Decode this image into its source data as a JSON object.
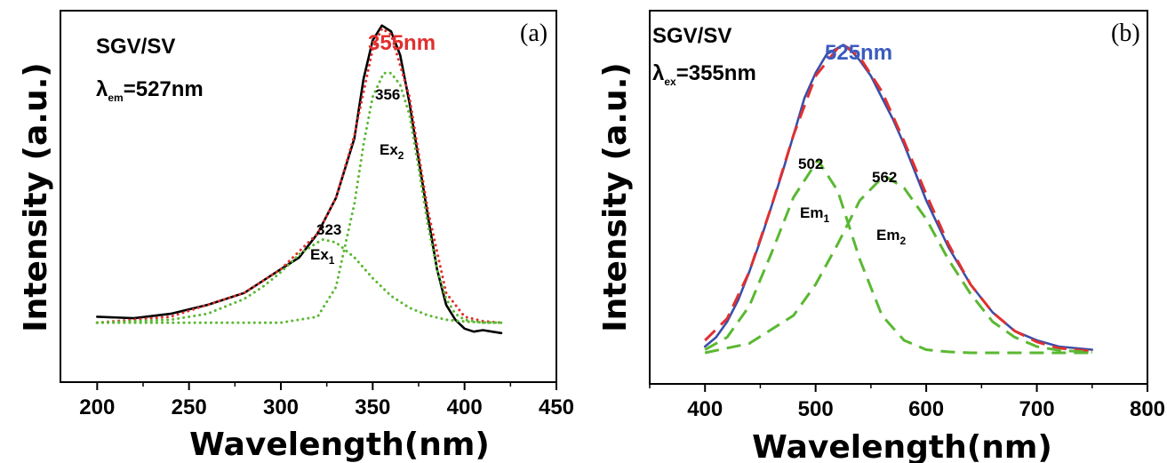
{
  "chart_data": [
    {
      "panel": "(a)",
      "type": "line",
      "title": "",
      "xlabel": "Wavelength(nm)",
      "ylabel": "Intensity (a.u.)",
      "xlim": [
        180,
        450
      ],
      "ylim": [
        -0.2,
        1.05
      ],
      "xticks": [
        "200",
        "250",
        "300",
        "350",
        "400",
        "450"
      ],
      "sample_label": "SGV/SV",
      "param_label": {
        "symbol": "λ",
        "sub": "em",
        "value": "=527nm"
      },
      "peak_label": "355nm",
      "annotations": [
        {
          "text": "356",
          "x": 356,
          "y": 0.84
        },
        {
          "text": "Ex",
          "sub": "2",
          "x": 358,
          "y": 0.65
        },
        {
          "text": "323",
          "x": 325,
          "y": 0.36
        },
        {
          "text": "Ex",
          "sub": "1",
          "x": 320,
          "y": 0.24
        }
      ],
      "series": [
        {
          "style": "solid",
          "color": "#000000",
          "x": [
            200,
            220,
            240,
            260,
            280,
            290,
            300,
            310,
            320,
            330,
            340,
            345,
            350,
            355,
            360,
            365,
            370,
            375,
            380,
            385,
            390,
            395,
            400,
            405,
            410,
            415,
            420
          ],
          "y": [
            0.02,
            0.015,
            0.03,
            0.06,
            0.1,
            0.14,
            0.18,
            0.22,
            0.3,
            0.42,
            0.62,
            0.82,
            0.95,
            1.0,
            0.98,
            0.9,
            0.74,
            0.55,
            0.36,
            0.18,
            0.06,
            0.01,
            -0.02,
            -0.03,
            -0.025,
            -0.03,
            -0.035
          ]
        },
        {
          "style": "dotted",
          "color": "#e03030",
          "x": [
            200,
            240,
            280,
            300,
            320,
            330,
            340,
            350,
            355,
            360,
            370,
            380,
            390,
            400,
            410,
            420
          ],
          "y": [
            0.0,
            0.02,
            0.1,
            0.18,
            0.3,
            0.42,
            0.63,
            0.92,
            0.99,
            0.97,
            0.76,
            0.38,
            0.1,
            0.02,
            0.005,
            0.0
          ]
        },
        {
          "style": "dotted",
          "color": "#5ab832",
          "x": [
            200,
            240,
            260,
            280,
            290,
            300,
            310,
            320,
            323,
            330,
            340,
            350,
            360,
            370,
            380,
            390,
            400,
            410,
            420
          ],
          "y": [
            0.0,
            0.01,
            0.03,
            0.08,
            0.12,
            0.17,
            0.23,
            0.27,
            0.28,
            0.27,
            0.22,
            0.15,
            0.09,
            0.05,
            0.025,
            0.01,
            0.004,
            0.001,
            0.0
          ]
        },
        {
          "style": "dotted",
          "color": "#5ab832",
          "x": [
            200,
            300,
            320,
            330,
            340,
            345,
            350,
            356,
            360,
            365,
            370,
            375,
            380,
            385,
            390,
            395,
            400,
            410,
            420
          ],
          "y": [
            0.0,
            0.0,
            0.02,
            0.12,
            0.4,
            0.6,
            0.76,
            0.84,
            0.84,
            0.8,
            0.7,
            0.52,
            0.33,
            0.18,
            0.08,
            0.03,
            0.01,
            0.0,
            0.0
          ]
        }
      ]
    },
    {
      "panel": "(b)",
      "type": "line",
      "title": "",
      "xlabel": "Wavelength(nm)",
      "ylabel": "Intensity (a.u.)",
      "xlim": [
        350,
        800
      ],
      "ylim": [
        -0.1,
        1.1
      ],
      "xticks": [
        "400",
        "500",
        "600",
        "700",
        "800"
      ],
      "sample_label": "SGV/SV",
      "param_label": {
        "symbol": "λ",
        "sub": "ex",
        "value": "=355nm"
      },
      "peak_label": "525nm",
      "annotations": [
        {
          "text": "502",
          "x": 502,
          "y": 0.72
        },
        {
          "text": "Em",
          "sub": "1",
          "x": 505,
          "y": 0.54
        },
        {
          "text": "562",
          "x": 562,
          "y": 0.66
        },
        {
          "text": "Em",
          "sub": "2",
          "x": 572,
          "y": 0.49
        }
      ],
      "series": [
        {
          "style": "solid",
          "color": "#3b4ea8",
          "x": [
            400,
            410,
            420,
            430,
            440,
            450,
            460,
            470,
            480,
            490,
            500,
            510,
            520,
            525,
            530,
            540,
            550,
            560,
            570,
            580,
            590,
            600,
            620,
            640,
            660,
            680,
            700,
            720,
            750
          ],
          "y": [
            0.02,
            0.05,
            0.1,
            0.17,
            0.26,
            0.36,
            0.47,
            0.58,
            0.7,
            0.82,
            0.9,
            0.96,
            0.98,
            0.99,
            0.98,
            0.94,
            0.89,
            0.82,
            0.75,
            0.67,
            0.58,
            0.49,
            0.34,
            0.22,
            0.13,
            0.07,
            0.04,
            0.02,
            0.01
          ]
        },
        {
          "style": "dashed",
          "color": "#e03030",
          "x": [
            400,
            420,
            440,
            460,
            480,
            500,
            520,
            525,
            540,
            560,
            580,
            600,
            620,
            640,
            660,
            680,
            700,
            720,
            750
          ],
          "y": [
            0.04,
            0.11,
            0.26,
            0.47,
            0.7,
            0.89,
            0.98,
            0.99,
            0.95,
            0.84,
            0.68,
            0.51,
            0.35,
            0.22,
            0.13,
            0.07,
            0.035,
            0.015,
            0.005
          ]
        },
        {
          "style": "dashed",
          "color": "#5ab832",
          "x": [
            400,
            420,
            440,
            460,
            480,
            502,
            520,
            540,
            560,
            580,
            600,
            620,
            640,
            660,
            700,
            750
          ],
          "y": [
            0.01,
            0.05,
            0.15,
            0.32,
            0.5,
            0.62,
            0.52,
            0.3,
            0.12,
            0.04,
            0.01,
            0.003,
            0.0,
            0.0,
            0.0,
            0.0
          ]
        },
        {
          "style": "dashed",
          "color": "#5ab832",
          "x": [
            400,
            440,
            480,
            500,
            520,
            540,
            562,
            580,
            600,
            620,
            640,
            660,
            680,
            700,
            720,
            750
          ],
          "y": [
            0.0,
            0.03,
            0.12,
            0.22,
            0.35,
            0.49,
            0.57,
            0.53,
            0.43,
            0.3,
            0.19,
            0.1,
            0.05,
            0.02,
            0.008,
            0.002
          ]
        }
      ]
    }
  ]
}
